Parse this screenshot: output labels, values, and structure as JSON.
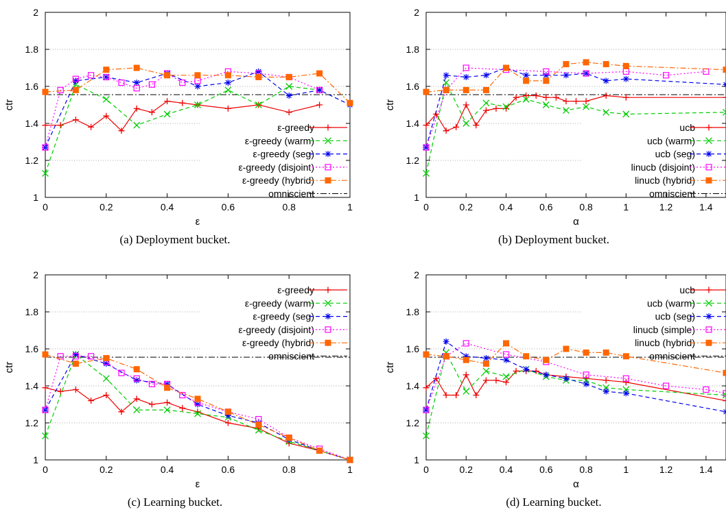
{
  "panels": [
    {
      "type": "line",
      "caption": "(a) Deployment bucket.",
      "xlabel": "ε",
      "ylabel": "ctr",
      "xlim": [
        0,
        1
      ],
      "ylim": [
        1,
        2
      ],
      "xticks": [
        "0",
        "0.2",
        "0.4",
        "0.6",
        "0.8",
        "1"
      ],
      "xtick_values": [
        0,
        0.2,
        0.4,
        0.6,
        0.8,
        1
      ],
      "yticks": [
        "1",
        "1.2",
        "1.4",
        "1.6",
        "1.8",
        "2"
      ],
      "ytick_values": [
        1,
        1.2,
        1.4,
        1.6,
        1.8,
        2
      ],
      "grid": "dotted horizontal",
      "legend_position": "bottom-right",
      "omniscient": 1.555,
      "series": [
        {
          "name": "ε-greedy",
          "color": "#ee0000",
          "dash": "",
          "marker": "plus",
          "x": [
            0,
            0.05,
            0.1,
            0.15,
            0.2,
            0.25,
            0.3,
            0.35,
            0.4,
            0.45,
            0.5,
            0.6,
            0.7,
            0.8,
            0.9
          ],
          "y": [
            1.39,
            1.39,
            1.42,
            1.38,
            1.44,
            1.36,
            1.48,
            1.46,
            1.52,
            1.51,
            1.5,
            1.48,
            1.5,
            1.46,
            1.5
          ]
        },
        {
          "name": "ε-greedy (warm)",
          "color": "#00cc00",
          "dash": "6,4",
          "marker": "x",
          "x": [
            0,
            0.1,
            0.2,
            0.3,
            0.4,
            0.5,
            0.6,
            0.7,
            0.8,
            0.9
          ],
          "y": [
            1.13,
            1.61,
            1.53,
            1.39,
            1.45,
            1.5,
            1.58,
            1.5,
            1.6,
            1.58
          ]
        },
        {
          "name": "ε-greedy (seg)",
          "color": "#0000ee",
          "dash": "6,4",
          "marker": "star",
          "x": [
            0,
            0.1,
            0.2,
            0.3,
            0.4,
            0.5,
            0.6,
            0.7,
            0.8,
            0.9,
            1
          ],
          "y": [
            1.27,
            1.63,
            1.65,
            1.62,
            1.67,
            1.6,
            1.62,
            1.68,
            1.55,
            1.58,
            1.5
          ]
        },
        {
          "name": "ε-greedy (disjoint)",
          "color": "#ff00ff",
          "dash": "2,3",
          "marker": "square-open",
          "x": [
            0,
            0.05,
            0.1,
            0.15,
            0.2,
            0.25,
            0.3,
            0.35,
            0.4,
            0.45,
            0.5,
            0.6,
            0.7,
            0.8,
            0.9
          ],
          "y": [
            1.27,
            1.58,
            1.64,
            1.66,
            1.65,
            1.62,
            1.59,
            1.61,
            1.67,
            1.62,
            1.63,
            1.68,
            1.67,
            1.65,
            1.58
          ]
        },
        {
          "name": "ε-greedy (hybrid)",
          "color": "#ff6600",
          "dash": "8,3,2,3",
          "marker": "square-filled",
          "x": [
            0,
            0.1,
            0.2,
            0.3,
            0.4,
            0.5,
            0.6,
            0.7,
            0.8,
            0.9,
            1
          ],
          "y": [
            1.57,
            1.58,
            1.69,
            1.7,
            1.66,
            1.66,
            1.66,
            1.65,
            1.65,
            1.67,
            1.51
          ]
        }
      ],
      "omniscient_label": "omniscient"
    },
    {
      "type": "line",
      "caption": "(b) Deployment bucket.",
      "xlabel": "α",
      "ylabel": "ctr",
      "xlim": [
        0,
        1.5
      ],
      "ylim": [
        1,
        2
      ],
      "xticks": [
        "0",
        "0.2",
        "0.4",
        "0.6",
        "0.8",
        "1",
        "1.2",
        "1.4"
      ],
      "xtick_values": [
        0,
        0.2,
        0.4,
        0.6,
        0.8,
        1,
        1.2,
        1.4
      ],
      "yticks": [
        "1",
        "1.2",
        "1.4",
        "1.6",
        "1.8",
        "2"
      ],
      "ytick_values": [
        1,
        1.2,
        1.4,
        1.6,
        1.8,
        2
      ],
      "grid": "dotted horizontal",
      "legend_position": "bottom-right",
      "omniscient": 1.555,
      "series": [
        {
          "name": "ucb",
          "color": "#ee0000",
          "dash": "",
          "marker": "plus",
          "x": [
            0,
            0.05,
            0.1,
            0.15,
            0.2,
            0.25,
            0.3,
            0.35,
            0.4,
            0.45,
            0.5,
            0.55,
            0.6,
            0.65,
            0.7,
            0.75,
            0.8,
            0.9,
            1,
            1.5
          ],
          "y": [
            1.39,
            1.45,
            1.36,
            1.38,
            1.5,
            1.39,
            1.47,
            1.48,
            1.48,
            1.54,
            1.55,
            1.55,
            1.54,
            1.54,
            1.52,
            1.52,
            1.52,
            1.55,
            1.54,
            1.54
          ]
        },
        {
          "name": "ucb (warm)",
          "color": "#00cc00",
          "dash": "6,4",
          "marker": "x",
          "x": [
            0,
            0.1,
            0.2,
            0.3,
            0.4,
            0.5,
            0.6,
            0.7,
            0.8,
            0.9,
            1,
            1.5
          ],
          "y": [
            1.13,
            1.62,
            1.4,
            1.51,
            1.49,
            1.53,
            1.5,
            1.47,
            1.49,
            1.46,
            1.45,
            1.46
          ]
        },
        {
          "name": "ucb (seg)",
          "color": "#0000ee",
          "dash": "6,4",
          "marker": "star",
          "x": [
            0,
            0.1,
            0.2,
            0.3,
            0.4,
            0.5,
            0.6,
            0.7,
            0.8,
            0.9,
            1,
            1.5
          ],
          "y": [
            1.27,
            1.66,
            1.65,
            1.66,
            1.7,
            1.66,
            1.66,
            1.66,
            1.67,
            1.63,
            1.64,
            1.61
          ]
        },
        {
          "name": "linucb (disjoint)",
          "color": "#ff00ff",
          "dash": "2,3",
          "marker": "square-open",
          "x": [
            0,
            0.1,
            0.2,
            0.4,
            0.6,
            0.8,
            1,
            1.2,
            1.4
          ],
          "y": [
            1.27,
            1.58,
            1.7,
            1.69,
            1.68,
            1.67,
            1.68,
            1.66,
            1.68
          ]
        },
        {
          "name": "linucb (hybrid)",
          "color": "#ff6600",
          "dash": "8,3,2,3",
          "marker": "square-filled",
          "x": [
            0,
            0.1,
            0.2,
            0.3,
            0.4,
            0.5,
            0.6,
            0.7,
            0.8,
            0.9,
            1,
            1.5
          ],
          "y": [
            1.57,
            1.58,
            1.58,
            1.58,
            1.7,
            1.63,
            1.63,
            1.72,
            1.73,
            1.72,
            1.71,
            1.69
          ]
        }
      ],
      "omniscient_label": "omniscient"
    },
    {
      "type": "line",
      "caption": "(c) Learning bucket.",
      "xlabel": "ε",
      "ylabel": "ctr",
      "xlim": [
        0,
        1
      ],
      "ylim": [
        1,
        2
      ],
      "xticks": [
        "0",
        "0.2",
        "0.4",
        "0.6",
        "0.8",
        "1"
      ],
      "xtick_values": [
        0,
        0.2,
        0.4,
        0.6,
        0.8,
        1
      ],
      "yticks": [
        "1",
        "1.2",
        "1.4",
        "1.6",
        "1.8",
        "2"
      ],
      "ytick_values": [
        1,
        1.2,
        1.4,
        1.6,
        1.8,
        2
      ],
      "grid": "dotted horizontal",
      "legend_position": "top-right",
      "omniscient": 1.555,
      "series": [
        {
          "name": "ε-greedy",
          "color": "#ee0000",
          "dash": "",
          "marker": "plus",
          "x": [
            0,
            0.05,
            0.1,
            0.15,
            0.2,
            0.25,
            0.3,
            0.35,
            0.4,
            0.45,
            0.5,
            0.6,
            0.7,
            0.8,
            0.9,
            1
          ],
          "y": [
            1.39,
            1.37,
            1.38,
            1.32,
            1.35,
            1.26,
            1.33,
            1.3,
            1.31,
            1.28,
            1.26,
            1.2,
            1.17,
            1.09,
            1.05,
            1.0
          ]
        },
        {
          "name": "ε-greedy (warm)",
          "color": "#00cc00",
          "dash": "6,4",
          "marker": "x",
          "x": [
            0,
            0.1,
            0.2,
            0.3,
            0.4,
            0.5,
            0.6,
            0.7,
            0.8,
            0.9,
            1
          ],
          "y": [
            1.13,
            1.57,
            1.44,
            1.27,
            1.27,
            1.25,
            1.23,
            1.16,
            1.1,
            1.05,
            1.0
          ]
        },
        {
          "name": "ε-greedy (seg)",
          "color": "#0000ee",
          "dash": "6,4",
          "marker": "star",
          "x": [
            0,
            0.1,
            0.2,
            0.3,
            0.4,
            0.5,
            0.6,
            0.7,
            0.8,
            0.9,
            1
          ],
          "y": [
            1.27,
            1.57,
            1.52,
            1.43,
            1.41,
            1.3,
            1.24,
            1.2,
            1.11,
            1.05,
            1.0
          ]
        },
        {
          "name": "ε-greedy (disjoint)",
          "color": "#ff00ff",
          "dash": "2,3",
          "marker": "square-open",
          "x": [
            0,
            0.05,
            0.1,
            0.15,
            0.2,
            0.25,
            0.3,
            0.35,
            0.4,
            0.45,
            0.5,
            0.6,
            0.7,
            0.8,
            0.9,
            1
          ],
          "y": [
            1.27,
            1.56,
            1.56,
            1.56,
            1.53,
            1.47,
            1.44,
            1.41,
            1.41,
            1.35,
            1.31,
            1.26,
            1.22,
            1.12,
            1.06,
            1.0
          ]
        },
        {
          "name": "ε-greedy (hybrid)",
          "color": "#ff6600",
          "dash": "8,3,2,3",
          "marker": "square-filled",
          "x": [
            0,
            0.1,
            0.2,
            0.3,
            0.4,
            0.5,
            0.6,
            0.7,
            0.8,
            0.9,
            1
          ],
          "y": [
            1.57,
            1.52,
            1.55,
            1.49,
            1.39,
            1.33,
            1.26,
            1.19,
            1.12,
            1.05,
            1.0
          ]
        }
      ],
      "omniscient_label": "omniscient"
    },
    {
      "type": "line",
      "caption": "(d) Learning bucket.",
      "xlabel": "α",
      "ylabel": "ctr",
      "xlim": [
        0,
        1.5
      ],
      "ylim": [
        1,
        2
      ],
      "xticks": [
        "0",
        "0.2",
        "0.4",
        "0.6",
        "0.8",
        "1",
        "1.2",
        "1.4"
      ],
      "xtick_values": [
        0,
        0.2,
        0.4,
        0.6,
        0.8,
        1,
        1.2,
        1.4
      ],
      "yticks": [
        "1",
        "1.2",
        "1.4",
        "1.6",
        "1.8",
        "2"
      ],
      "ytick_values": [
        1,
        1.2,
        1.4,
        1.6,
        1.8,
        2
      ],
      "grid": "dotted horizontal",
      "legend_position": "top-right",
      "omniscient": 1.555,
      "series": [
        {
          "name": "ucb",
          "color": "#ee0000",
          "dash": "",
          "marker": "plus",
          "x": [
            0,
            0.05,
            0.1,
            0.15,
            0.2,
            0.25,
            0.3,
            0.35,
            0.4,
            0.45,
            0.5,
            0.55,
            0.6,
            0.7,
            0.8,
            0.9,
            1,
            1.5
          ],
          "y": [
            1.39,
            1.44,
            1.35,
            1.35,
            1.46,
            1.35,
            1.43,
            1.43,
            1.42,
            1.48,
            1.48,
            1.48,
            1.46,
            1.45,
            1.44,
            1.43,
            1.42,
            1.32
          ]
        },
        {
          "name": "ucb (warm)",
          "color": "#00cc00",
          "dash": "6,4",
          "marker": "x",
          "x": [
            0,
            0.1,
            0.2,
            0.3,
            0.4,
            0.5,
            0.6,
            0.7,
            0.8,
            0.9,
            1,
            1.5
          ],
          "y": [
            1.13,
            1.58,
            1.37,
            1.48,
            1.45,
            1.49,
            1.45,
            1.43,
            1.43,
            1.39,
            1.38,
            1.35
          ]
        },
        {
          "name": "ucb (seg)",
          "color": "#0000ee",
          "dash": "6,4",
          "marker": "star",
          "x": [
            0,
            0.1,
            0.2,
            0.3,
            0.4,
            0.5,
            0.6,
            0.7,
            0.8,
            0.9,
            1,
            1.5
          ],
          "y": [
            1.27,
            1.64,
            1.56,
            1.55,
            1.54,
            1.49,
            1.46,
            1.44,
            1.41,
            1.37,
            1.36,
            1.26
          ]
        },
        {
          "name": "linucb (simple)",
          "color": "#ff00ff",
          "dash": "2,3",
          "marker": "square-open",
          "x": [
            0,
            0.1,
            0.2,
            0.4,
            0.6,
            0.8,
            1,
            1.2,
            1.4,
            1.5
          ],
          "y": [
            1.27,
            1.56,
            1.63,
            1.57,
            1.53,
            1.46,
            1.44,
            1.4,
            1.38,
            1.36
          ]
        },
        {
          "name": "linucb (hybrid)",
          "color": "#ff6600",
          "dash": "8,3,2,3",
          "marker": "square-filled",
          "x": [
            0,
            0.1,
            0.2,
            0.3,
            0.4,
            0.5,
            0.6,
            0.7,
            0.8,
            0.9,
            1,
            1.5
          ],
          "y": [
            1.57,
            1.56,
            1.54,
            1.52,
            1.63,
            1.56,
            1.54,
            1.6,
            1.58,
            1.58,
            1.56,
            1.47
          ]
        }
      ],
      "omniscient_label": "omniscient"
    }
  ]
}
